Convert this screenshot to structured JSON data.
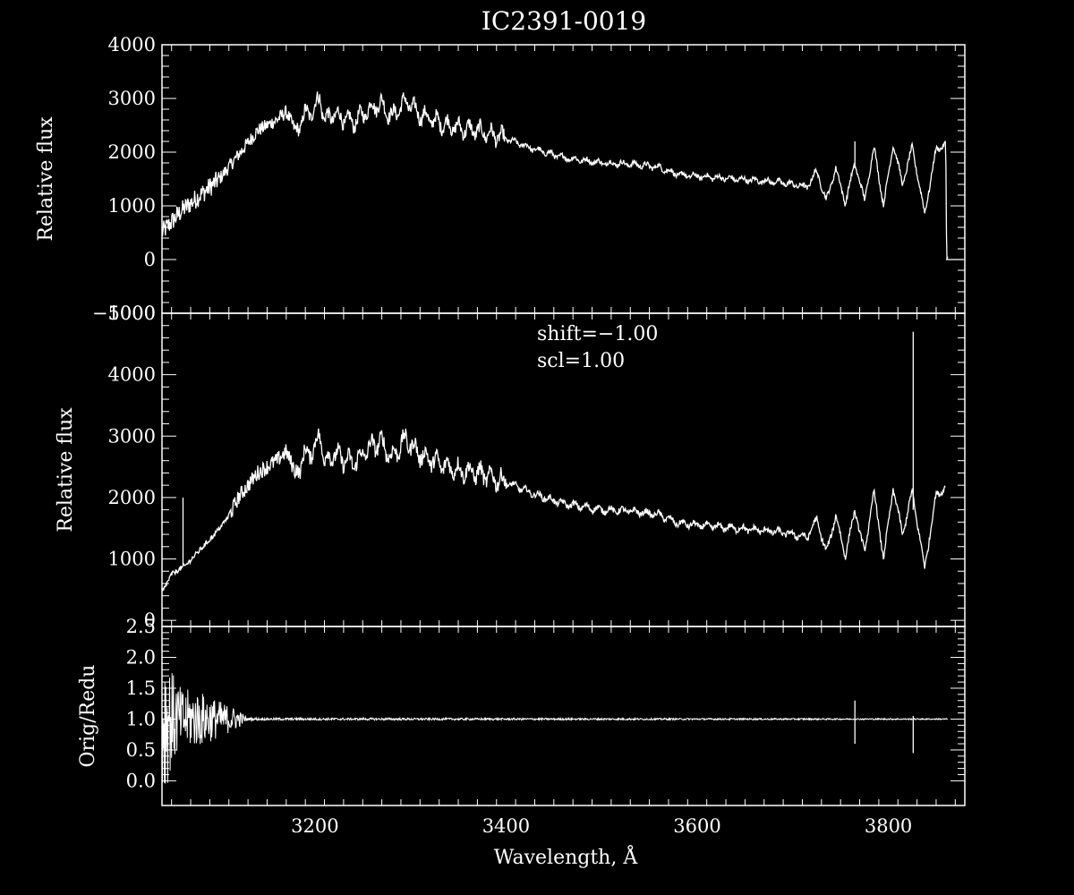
{
  "chart_data": [
    {
      "type": "line",
      "title": "IC2391-0019",
      "xlabel": "",
      "ylabel": "Relative flux",
      "xlim": [
        3040,
        3880
      ],
      "ylim": [
        -1000,
        4000
      ],
      "xticks": [
        3200,
        3400,
        3600,
        3800
      ],
      "yticks": [
        -1000,
        0,
        1000,
        2000,
        3000,
        4000
      ],
      "ytick_labels": [
        "−1000",
        "0",
        "1000",
        "2000",
        "3000",
        "4000"
      ],
      "x_range_data": [
        3040,
        3862
      ],
      "series": [
        {
          "x": [
            3040,
            3060,
            3080,
            3100,
            3120,
            3140,
            3160,
            3170,
            3180,
            3190,
            3200,
            3205,
            3210,
            3220,
            3240,
            3260,
            3270,
            3280,
            3295,
            3310,
            3330,
            3350,
            3370,
            3400,
            3430,
            3460,
            3500,
            3530,
            3560,
            3580,
            3600,
            3640,
            3680,
            3700,
            3715,
            3725,
            3735,
            3745,
            3755,
            3765,
            3775,
            3785,
            3795,
            3805,
            3815,
            3825,
            3838,
            3850,
            3860,
            3861,
            3862
          ],
          "y": [
            500,
            900,
            1200,
            1500,
            1950,
            2400,
            2600,
            2750,
            2400,
            2700,
            2800,
            3050,
            2600,
            2700,
            2550,
            2850,
            2900,
            2650,
            2950,
            2700,
            2550,
            2450,
            2400,
            2250,
            2050,
            1900,
            1800,
            1780,
            1720,
            1580,
            1550,
            1500,
            1450,
            1400,
            1350,
            1650,
            1100,
            1700,
            1050,
            1800,
            1100,
            2100,
            1000,
            2150,
            1400,
            2100,
            850,
            2050,
            2150,
            0,
            0
          ]
        }
      ],
      "spikes": [
        {
          "x": 3765,
          "y0": 1700,
          "y1": 2200
        }
      ]
    },
    {
      "type": "line",
      "xlabel": "",
      "ylabel": "Relative flux",
      "xlim": [
        3040,
        3880
      ],
      "ylim": [
        -100,
        5000
      ],
      "xticks": [
        3200,
        3400,
        3600,
        3800
      ],
      "yticks": [
        0,
        1000,
        2000,
        3000,
        4000,
        5000
      ],
      "annotations": [
        "shift=−1.00",
        "scl=1.00"
      ],
      "series": [
        {
          "x": [
            3040,
            3050,
            3065,
            3080,
            3095,
            3110,
            3120,
            3140,
            3160,
            3170,
            3180,
            3190,
            3200,
            3205,
            3210,
            3220,
            3240,
            3260,
            3270,
            3280,
            3295,
            3310,
            3330,
            3350,
            3370,
            3400,
            3430,
            3460,
            3500,
            3530,
            3560,
            3580,
            3600,
            3640,
            3680,
            3700,
            3715,
            3725,
            3735,
            3745,
            3755,
            3765,
            3775,
            3785,
            3795,
            3805,
            3815,
            3825,
            3838,
            3850,
            3860
          ],
          "y": [
            450,
            750,
            900,
            1150,
            1400,
            1700,
            2000,
            2400,
            2600,
            2750,
            2400,
            2700,
            2800,
            3050,
            2600,
            2700,
            2550,
            2850,
            2900,
            2650,
            2950,
            2700,
            2550,
            2450,
            2400,
            2250,
            2050,
            1900,
            1800,
            1780,
            1720,
            1580,
            1550,
            1500,
            1450,
            1400,
            1350,
            1650,
            1100,
            1700,
            1050,
            1800,
            1100,
            2100,
            1000,
            2150,
            1400,
            2100,
            850,
            2050,
            2150
          ]
        }
      ],
      "spikes": [
        {
          "x": 3062,
          "y0": 900,
          "y1": 2000
        },
        {
          "x": 3826,
          "y0": 1800,
          "y1": 4700
        }
      ]
    },
    {
      "type": "line",
      "xlabel": "Wavelength, Å",
      "ylabel": "Orig/Redu",
      "xlim": [
        3040,
        3880
      ],
      "ylim": [
        -0.4,
        2.5
      ],
      "xticks": [
        3200,
        3400,
        3600,
        3800
      ],
      "yticks": [
        0.0,
        0.5,
        1.0,
        1.5,
        2.0,
        2.5
      ],
      "ytick_labels": [
        "0.0",
        "0.5",
        "1.0",
        "1.5",
        "2.0",
        "2.5"
      ],
      "series": [
        {
          "x": [
            3040,
            3042,
            3045,
            3050,
            3060,
            3080,
            3100,
            3120,
            3130,
            3862
          ],
          "amplitude": [
            1.6,
            1.3,
            1.1,
            0.8,
            0.5,
            0.45,
            0.3,
            0.15,
            0.02,
            0.01
          ],
          "baseline": 1.0
        }
      ],
      "spikes": [
        {
          "x": 3765,
          "y0": 0.6,
          "y1": 1.3
        },
        {
          "x": 3826,
          "y0": 0.45,
          "y1": 1.05
        }
      ]
    }
  ]
}
